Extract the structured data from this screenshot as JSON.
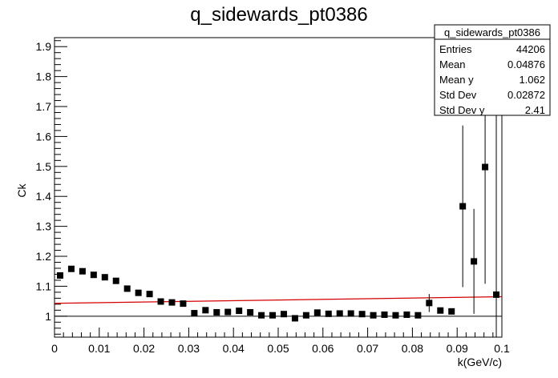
{
  "chart_data": {
    "type": "scatter",
    "title": "q_sidewards_pt0386",
    "xlabel": "k(GeV/c)",
    "ylabel": "Ck",
    "xlim": [
      0,
      0.1
    ],
    "ylim": [
      0.93,
      1.93
    ],
    "x_ticks": [
      "0",
      "0.01",
      "0.02",
      "0.03",
      "0.04",
      "0.05",
      "0.06",
      "0.07",
      "0.08",
      "0.09",
      "0.1"
    ],
    "y_ticks": [
      "1",
      "1.1",
      "1.2",
      "1.3",
      "1.4",
      "1.5",
      "1.6",
      "1.7",
      "1.8",
      "1.9"
    ],
    "series": [
      {
        "x": [
          0.00125,
          0.00375,
          0.00625,
          0.00875,
          0.01125,
          0.01375,
          0.01625,
          0.01875,
          0.02125,
          0.02375,
          0.02625,
          0.02875,
          0.03125,
          0.03375,
          0.03625,
          0.03875,
          0.04125,
          0.04375,
          0.04625,
          0.04875,
          0.05125,
          0.05375,
          0.05625,
          0.05875,
          0.06125,
          0.06375,
          0.06625,
          0.06875,
          0.07125,
          0.07375,
          0.07625,
          0.07875,
          0.08125,
          0.08375,
          0.08625,
          0.08875,
          0.09125,
          0.09375,
          0.09625,
          0.09875
        ],
        "y": [
          1.136,
          1.158,
          1.15,
          1.138,
          1.13,
          1.118,
          1.092,
          1.078,
          1.074,
          1.049,
          1.046,
          1.042,
          1.01,
          1.02,
          1.013,
          1.014,
          1.018,
          1.013,
          1.003,
          1.003,
          1.007,
          0.993,
          1.003,
          1.012,
          1.008,
          1.009,
          1.009,
          1.007,
          1.003,
          1.005,
          1.003,
          1.005,
          1.003,
          1.044,
          1.019,
          1.016,
          1.367,
          1.183,
          1.498,
          1.072
        ],
        "yerr": [
          0,
          0,
          0,
          0,
          0,
          0,
          0,
          0,
          0,
          0,
          0,
          0,
          0,
          0,
          0,
          0,
          0,
          0,
          0,
          0,
          0,
          0,
          0,
          0,
          0,
          0,
          0,
          0,
          0,
          0,
          0,
          0,
          0,
          0.03,
          0,
          0,
          0.27,
          0.175,
          0.39,
          0.64
        ]
      }
    ],
    "fit_line": {
      "x": [
        0,
        0.1
      ],
      "y": [
        1.043,
        1.065
      ],
      "color": "#d40000"
    },
    "reference_line": {
      "y": 1.0,
      "color": "#000000"
    },
    "stats_box": {
      "title": "q_sidewards_pt0386",
      "rows": [
        {
          "label": "Entries",
          "value": "44206"
        },
        {
          "label": "Mean",
          "value": "0.04876"
        },
        {
          "label": "Mean y",
          "value": "1.062"
        },
        {
          "label": "Std Dev",
          "value": "0.02872"
        },
        {
          "label": "Std Dev y",
          "value": "2.41"
        }
      ]
    }
  }
}
